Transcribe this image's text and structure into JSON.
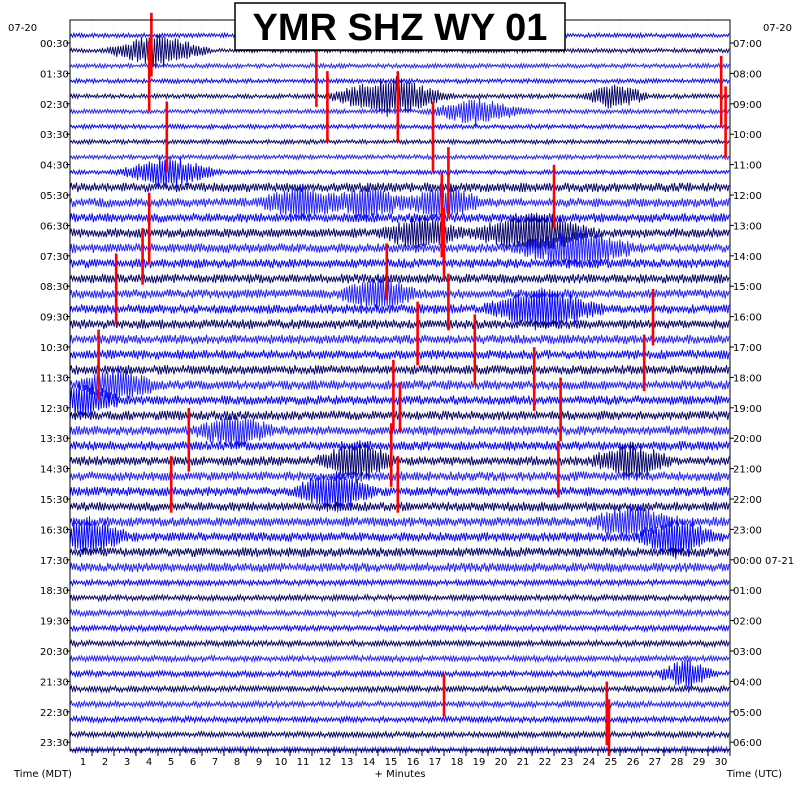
{
  "chart_data": {
    "type": "helicorder",
    "title": "YMR SHZ WY 01",
    "left_axis": {
      "label": "Time (MDT)",
      "date": "07-20",
      "rows": [
        "00:30",
        "01:30",
        "02:30",
        "03:30",
        "04:30",
        "05:30",
        "06:30",
        "07:30",
        "08:30",
        "09:30",
        "10:30",
        "11:30",
        "12:30",
        "13:30",
        "14:30",
        "15:30",
        "16:30",
        "17:30",
        "18:30",
        "19:30",
        "20:30",
        "21:30",
        "22:30",
        "23:30"
      ]
    },
    "right_axis": {
      "label": "Time (UTC)",
      "date": "07-20",
      "rows": [
        "07:00",
        "08:00",
        "09:00",
        "10:00",
        "11:00",
        "12:00",
        "13:00",
        "14:00",
        "15:00",
        "16:00",
        "17:00",
        "18:00",
        "19:00",
        "20:00",
        "21:00",
        "22:00",
        "23:00",
        "00:00 07-21",
        "01:00",
        "02:00",
        "03:00",
        "04:00",
        "05:00",
        "06:00"
      ]
    },
    "x_axis": {
      "label": "+ Minutes",
      "range": [
        0,
        30
      ],
      "ticks": [
        "1",
        "2",
        "3",
        "4",
        "5",
        "6",
        "7",
        "8",
        "9",
        "10",
        "11",
        "12",
        "13",
        "14",
        "15",
        "16",
        "17",
        "18",
        "19",
        "20",
        "21",
        "22",
        "23",
        "24",
        "25",
        "26",
        "27",
        "28",
        "29",
        "30"
      ]
    },
    "trace_rows_per_hour": 2,
    "total_traces": 48,
    "trace_colors": [
      "#0000ff",
      "#000066",
      "#1e1eff"
    ],
    "event_color": "#ff0000",
    "grid": true,
    "events": [
      {
        "trace": 0,
        "minute": 3.7,
        "amp": 0.9
      },
      {
        "trace": 2,
        "minute": 3.6,
        "amp": 1.0
      },
      {
        "trace": 2,
        "minute": 11.2,
        "amp": 0.9
      },
      {
        "trace": 3,
        "minute": 29.6,
        "amp": 1.0
      },
      {
        "trace": 4,
        "minute": 11.7,
        "amp": 1.0
      },
      {
        "trace": 4,
        "minute": 14.9,
        "amp": 1.0
      },
      {
        "trace": 5,
        "minute": 29.8,
        "amp": 1.0
      },
      {
        "trace": 6,
        "minute": 4.4,
        "amp": 1.0
      },
      {
        "trace": 6,
        "minute": 16.5,
        "amp": 1.0
      },
      {
        "trace": 9,
        "minute": 17.2,
        "amp": 1.0
      },
      {
        "trace": 10,
        "minute": 22.0,
        "amp": 0.9
      },
      {
        "trace": 11,
        "minute": 16.9,
        "amp": 1.2
      },
      {
        "trace": 12,
        "minute": 3.6,
        "amp": 1.0
      },
      {
        "trace": 13,
        "minute": 17.0,
        "amp": 1.0
      },
      {
        "trace": 14,
        "minute": 3.3,
        "amp": 0.8
      },
      {
        "trace": 15,
        "minute": 14.4,
        "amp": 0.8
      },
      {
        "trace": 16,
        "minute": 2.1,
        "amp": 1.0
      },
      {
        "trace": 17,
        "minute": 17.2,
        "amp": 0.8
      },
      {
        "trace": 18,
        "minute": 26.5,
        "amp": 0.8
      },
      {
        "trace": 19,
        "minute": 15.8,
        "amp": 0.9
      },
      {
        "trace": 20,
        "minute": 18.4,
        "amp": 1.0
      },
      {
        "trace": 21,
        "minute": 1.3,
        "amp": 1.0
      },
      {
        "trace": 21,
        "minute": 26.1,
        "amp": 0.8
      },
      {
        "trace": 22,
        "minute": 21.1,
        "amp": 0.9
      },
      {
        "trace": 23,
        "minute": 14.7,
        "amp": 1.0
      },
      {
        "trace": 24,
        "minute": 22.3,
        "amp": 0.9
      },
      {
        "trace": 24,
        "minute": 15.0,
        "amp": 0.7
      },
      {
        "trace": 26,
        "minute": 5.4,
        "amp": 0.9
      },
      {
        "trace": 27,
        "minute": 14.6,
        "amp": 0.9
      },
      {
        "trace": 28,
        "minute": 22.2,
        "amp": 0.8
      },
      {
        "trace": 29,
        "minute": 14.9,
        "amp": 0.8
      },
      {
        "trace": 29,
        "minute": 4.6,
        "amp": 0.8
      },
      {
        "trace": 43,
        "minute": 17.0,
        "amp": 0.6
      },
      {
        "trace": 44,
        "minute": 24.4,
        "amp": 0.9
      },
      {
        "trace": 45,
        "minute": 24.5,
        "amp": 0.8
      }
    ],
    "blasts": [
      {
        "trace": 1,
        "minute": 4.0,
        "width": 2.5,
        "amp": 0.5
      },
      {
        "trace": 4,
        "minute": 14.5,
        "width": 3.0,
        "amp": 0.6
      },
      {
        "trace": 4,
        "minute": 24.8,
        "width": 1.6,
        "amp": 0.4
      },
      {
        "trace": 5,
        "minute": 18.5,
        "width": 2.5,
        "amp": 0.4
      },
      {
        "trace": 9,
        "minute": 4.5,
        "width": 2.5,
        "amp": 0.5
      },
      {
        "trace": 11,
        "minute": 10.5,
        "width": 2.0,
        "amp": 0.5
      },
      {
        "trace": 11,
        "minute": 13.5,
        "width": 2.0,
        "amp": 0.5
      },
      {
        "trace": 11,
        "minute": 17.0,
        "width": 2.0,
        "amp": 0.5
      },
      {
        "trace": 13,
        "minute": 21.0,
        "width": 3.0,
        "amp": 0.6
      },
      {
        "trace": 13,
        "minute": 16.0,
        "width": 2.0,
        "amp": 0.5
      },
      {
        "trace": 14,
        "minute": 23.0,
        "width": 3.0,
        "amp": 0.6
      },
      {
        "trace": 17,
        "minute": 14.0,
        "width": 2.0,
        "amp": 0.5
      },
      {
        "trace": 18,
        "minute": 21.5,
        "width": 3.0,
        "amp": 0.6
      },
      {
        "trace": 23,
        "minute": 2.2,
        "width": 2.0,
        "amp": 0.5
      },
      {
        "trace": 24,
        "minute": 0.5,
        "width": 2.0,
        "amp": 0.5
      },
      {
        "trace": 26,
        "minute": 7.5,
        "width": 2.0,
        "amp": 0.5
      },
      {
        "trace": 28,
        "minute": 13.0,
        "width": 2.0,
        "amp": 0.6
      },
      {
        "trace": 28,
        "minute": 25.5,
        "width": 2.0,
        "amp": 0.5
      },
      {
        "trace": 30,
        "minute": 12.0,
        "width": 2.0,
        "amp": 0.6
      },
      {
        "trace": 32,
        "minute": 25.5,
        "width": 2.0,
        "amp": 0.5
      },
      {
        "trace": 33,
        "minute": 0.8,
        "width": 2.0,
        "amp": 0.6
      },
      {
        "trace": 33,
        "minute": 27.5,
        "width": 2.0,
        "amp": 0.6
      },
      {
        "trace": 42,
        "minute": 28.0,
        "width": 1.5,
        "amp": 0.4
      }
    ]
  }
}
